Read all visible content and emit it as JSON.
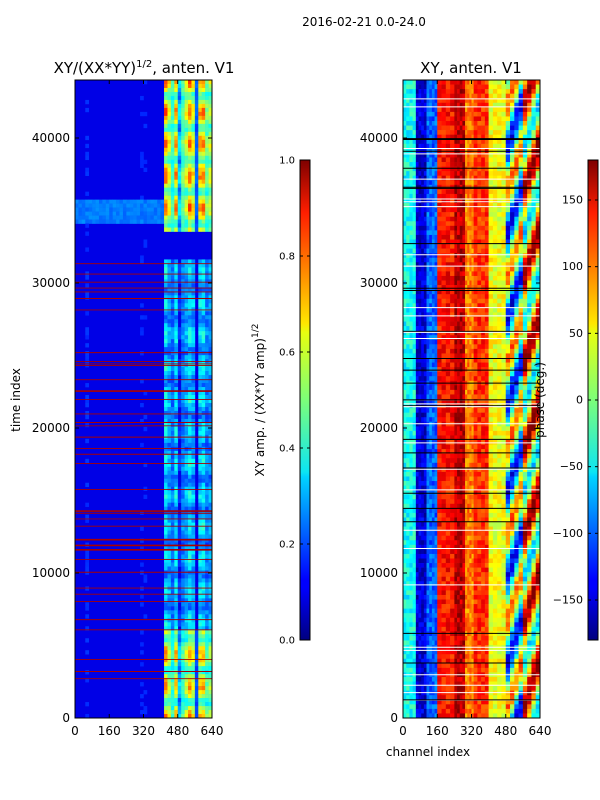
{
  "figure": {
    "suptitle": "2016-02-21 0.0-24.0"
  },
  "chart_data": [
    {
      "type": "heatmap",
      "title_main": "XY/(XX*YY)",
      "title_sup": "1/2",
      "title_tail": ", anten. V1",
      "xlabel": "",
      "ylabel": "time index",
      "xlim": [
        0,
        640
      ],
      "ylim": [
        0,
        44000
      ],
      "xticks": [
        0,
        160,
        320,
        480,
        640
      ],
      "yticks": [
        0,
        10000,
        20000,
        30000,
        40000
      ],
      "colormap": "jet",
      "colorbar": {
        "label_main": "XY amp. / (XX*YY amp)",
        "label_sup": "1/2",
        "range": [
          0.0,
          1.0
        ],
        "ticks": [
          "0.0",
          "0.2",
          "0.4",
          "0.6",
          "0.8",
          "1.0"
        ],
        "tick_values": [
          0.0,
          0.2,
          0.4,
          0.6,
          0.8,
          1.0
        ]
      },
      "flagged_rows_color": "#aa0000",
      "bright_regions": [
        {
          "x": [
            410,
            640
          ],
          "y": [
            33500,
            44000
          ],
          "level": 0.75
        },
        {
          "x": [
            410,
            640
          ],
          "y": [
            0,
            6000
          ],
          "level": 0.7
        },
        {
          "x": [
            410,
            640
          ],
          "y": [
            6000,
            31500
          ],
          "level": 0.35
        }
      ]
    },
    {
      "type": "heatmap",
      "title": "XY, anten. V1",
      "xlabel": "channel index",
      "ylabel": "",
      "xlim": [
        0,
        640
      ],
      "ylim": [
        0,
        44000
      ],
      "xticks": [
        0,
        160,
        320,
        480,
        640
      ],
      "yticks": [
        0,
        10000,
        20000,
        30000,
        40000
      ],
      "colormap": "jet",
      "colorbar": {
        "label": "phase (deg.)",
        "range": [
          -180,
          180
        ],
        "ticks": [
          "150",
          "100",
          "50",
          "0",
          "−50",
          "−100",
          "−150"
        ],
        "tick_values": [
          150,
          100,
          50,
          0,
          -50,
          -100,
          -150
        ]
      },
      "phase_bands_deg": [
        {
          "x": [
            0,
            60
          ],
          "deg": -40
        },
        {
          "x": [
            60,
            110
          ],
          "deg": -150
        },
        {
          "x": [
            110,
            160
          ],
          "deg": -100
        },
        {
          "x": [
            160,
            240
          ],
          "deg": 130
        },
        {
          "x": [
            240,
            290
          ],
          "deg": 160
        },
        {
          "x": [
            290,
            330
          ],
          "deg": 90
        },
        {
          "x": [
            330,
            400
          ],
          "deg": 120
        },
        {
          "x": [
            400,
            480
          ],
          "deg": 40
        },
        {
          "x": [
            480,
            560
          ],
          "deg": -20
        },
        {
          "x": [
            560,
            640
          ],
          "deg": 60
        }
      ]
    }
  ]
}
